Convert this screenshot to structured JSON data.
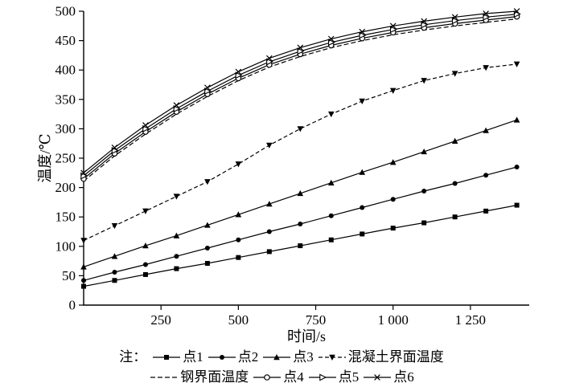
{
  "note_prefix": "注：",
  "chart_data": {
    "type": "line",
    "title": "",
    "xlabel": "时间/s",
    "ylabel": "温度/℃",
    "xlim": [
      0,
      1440
    ],
    "ylim": [
      0,
      500
    ],
    "grid": false,
    "legend_position": "bottom",
    "x": [
      0,
      100,
      200,
      300,
      400,
      500,
      600,
      700,
      800,
      900,
      1000,
      1100,
      1200,
      1300,
      1400
    ],
    "xticks": [
      {
        "v": 250,
        "label": "250"
      },
      {
        "v": 500,
        "label": "500"
      },
      {
        "v": 750,
        "label": "750"
      },
      {
        "v": 1000,
        "label": "1 000"
      },
      {
        "v": 1250,
        "label": "1 250"
      }
    ],
    "yticks": [
      {
        "v": 0,
        "label": "0"
      },
      {
        "v": 50,
        "label": "50"
      },
      {
        "v": 100,
        "label": "100"
      },
      {
        "v": 150,
        "label": "150"
      },
      {
        "v": 200,
        "label": "200"
      },
      {
        "v": 250,
        "label": "250"
      },
      {
        "v": 300,
        "label": "300"
      },
      {
        "v": 350,
        "label": "350"
      },
      {
        "v": 400,
        "label": "400"
      },
      {
        "v": 450,
        "label": "450"
      },
      {
        "v": 500,
        "label": "500"
      }
    ],
    "series": [
      {
        "name": "点1",
        "marker": "square",
        "dash": null,
        "values": [
          32,
          42,
          52,
          62,
          71,
          81,
          91,
          101,
          111,
          121,
          131,
          140,
          150,
          160,
          170
        ]
      },
      {
        "name": "点2",
        "marker": "circle",
        "dash": null,
        "values": [
          42,
          56,
          69,
          83,
          97,
          111,
          125,
          138,
          152,
          166,
          180,
          194,
          207,
          221,
          235
        ]
      },
      {
        "name": "点3",
        "marker": "triangle-up",
        "dash": null,
        "values": [
          65,
          83,
          101,
          118,
          136,
          154,
          172,
          190,
          208,
          226,
          243,
          261,
          279,
          297,
          315
        ]
      },
      {
        "name": "混凝土界面温度",
        "marker": "triangle-down",
        "dash": "5 3",
        "values": [
          110,
          135,
          160,
          185,
          210,
          240,
          272,
          300,
          325,
          347,
          365,
          382,
          394,
          404,
          410
        ]
      },
      {
        "name": "钢界面温度",
        "marker": "none",
        "dash": "6 3",
        "values": [
          211,
          254,
          291,
          325,
          355,
          382,
          405,
          423,
          438,
          450,
          460,
          468,
          475,
          481,
          487
        ]
      },
      {
        "name": "点4",
        "marker": "circle-open",
        "dash": null,
        "values": [
          215,
          258,
          295,
          329,
          359,
          386,
          409,
          427,
          442,
          454,
          464,
          472,
          479,
          485,
          491
        ]
      },
      {
        "name": "点5",
        "marker": "triangle-right-open",
        "dash": null,
        "values": [
          220,
          263,
          300,
          334,
          364,
          391,
          414,
          432,
          447,
          459,
          469,
          477,
          484,
          490,
          495
        ]
      },
      {
        "name": "点6",
        "marker": "x",
        "dash": null,
        "values": [
          225,
          268,
          306,
          340,
          370,
          397,
          420,
          438,
          453,
          465,
          475,
          483,
          490,
          496,
          500
        ]
      }
    ],
    "legend_rows": [
      [
        "点1",
        "点2",
        "点3",
        "混凝土界面温度"
      ],
      [
        "钢界面温度",
        "点4",
        "点5",
        "点6"
      ]
    ]
  }
}
